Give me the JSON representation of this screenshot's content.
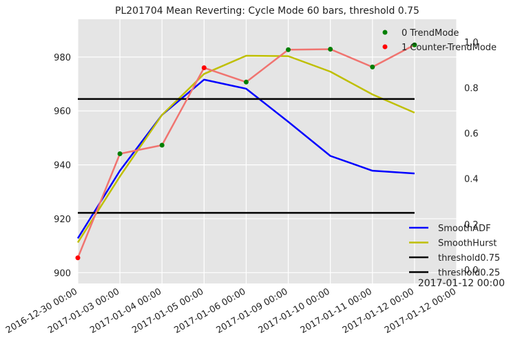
{
  "chart_data": {
    "type": "line",
    "title": "PL201704 Mean Reverting: Cycle Mode 60 bars, threshold 0.75",
    "x_tick_labels": [
      "2016-12-30 00:00",
      "2017-01-03 00:00",
      "2017-01-04 00:00",
      "2017-01-05 00:00",
      "2017-01-06 00:00",
      "2017-01-09 00:00",
      "2017-01-10 00:00",
      "2017-01-11 00:00",
      "2017-01-12 00:00",
      "2017-01-12 00:00"
    ],
    "x_offset_label": "2017-01-12 00:00",
    "left_axis": {
      "ylim": [
        896,
        994
      ],
      "ticks": [
        900,
        920,
        940,
        960,
        980
      ]
    },
    "right_axis": {
      "ylim": [
        -0.06,
        1.1
      ],
      "ticks": [
        "0.0",
        "0.2",
        "0.4",
        "0.6",
        "0.8",
        "1.0"
      ]
    },
    "price_line": {
      "color": "#f07470",
      "x": [
        0,
        1,
        2,
        3,
        4,
        5,
        6,
        7,
        8
      ],
      "values": [
        905.5,
        944.1,
        947.3,
        976.0,
        970.7,
        982.7,
        982.9,
        976.3,
        984.5
      ]
    },
    "mode_points": {
      "x": [
        0,
        1,
        2,
        3,
        4,
        5,
        6,
        7,
        8
      ],
      "values": [
        905.5,
        944.1,
        947.3,
        976.0,
        970.7,
        982.7,
        982.9,
        976.3,
        984.5
      ],
      "mode": [
        1,
        0,
        0,
        1,
        0,
        0,
        0,
        0,
        0
      ]
    },
    "series": [
      {
        "name": "SmoothADF",
        "color": "#0000ff",
        "axis": "right",
        "x": [
          0,
          1,
          2,
          3,
          4,
          5,
          6,
          7,
          8
        ],
        "values": [
          0.138,
          0.435,
          0.68,
          0.835,
          0.795,
          0.65,
          0.5,
          0.435,
          0.423
        ]
      },
      {
        "name": "SmoothHurst",
        "color": "#bfbf00",
        "axis": "right",
        "x": [
          0,
          1,
          2,
          3,
          4,
          5,
          6,
          7,
          8
        ],
        "values": [
          0.12,
          0.41,
          0.68,
          0.86,
          0.94,
          0.938,
          0.87,
          0.77,
          0.69
        ]
      },
      {
        "name": "threshold0.75",
        "color": "#000000",
        "axis": "right",
        "x": [
          0,
          8
        ],
        "values": [
          0.75,
          0.75
        ]
      },
      {
        "name": "threshold0.25",
        "color": "#000000",
        "axis": "right",
        "x": [
          0,
          8
        ],
        "values": [
          0.25,
          0.25
        ]
      }
    ],
    "legend_points": [
      {
        "label": "0 TrendMode",
        "color": "#007f00"
      },
      {
        "label": "1 Counter-TrendMode",
        "color": "#ff0000"
      }
    ],
    "legend_lines": [
      {
        "label": "SmoothADF",
        "color": "#0000ff"
      },
      {
        "label": "SmoothHurst",
        "color": "#bfbf00"
      },
      {
        "label": "threshold0.75",
        "color": "#000000"
      },
      {
        "label": "threshold0.25",
        "color": "#000000"
      }
    ],
    "point_colors": {
      "0": "#007f00",
      "1": "#ff0000"
    },
    "grid": true,
    "legend_placement": [
      "top-right",
      "bottom-right"
    ]
  }
}
